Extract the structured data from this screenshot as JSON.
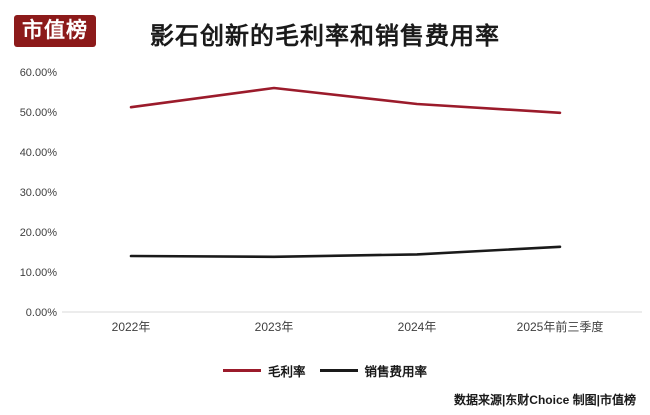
{
  "logo": {
    "text": "市值榜",
    "bg_color": "#8C1A1A",
    "text_color": "#FFFFFF"
  },
  "title": "影石创新的毛利率和销售费用率",
  "legend": [
    {
      "label": "毛利率",
      "color": "#9B1B2B"
    },
    {
      "label": "销售费用率",
      "color": "#1A1A1A"
    }
  ],
  "credit": "数据来源|东财Choice 制图|市值榜",
  "chart_data": {
    "type": "line",
    "title": "影石创新的毛利率和销售费用率",
    "categories": [
      "2022年",
      "2023年",
      "2024年",
      "2025年前三季度"
    ],
    "series": [
      {
        "name": "毛利率",
        "color": "#9B1B2B",
        "values": [
          51.2,
          56.0,
          52.0,
          49.8
        ]
      },
      {
        "name": "销售费用率",
        "color": "#1A1A1A",
        "values": [
          14.0,
          13.8,
          14.4,
          16.3
        ]
      }
    ],
    "ylim": [
      0,
      60
    ],
    "ytick_step": 10,
    "yticks": [
      "0.00%",
      "10.00%",
      "20.00%",
      "30.00%",
      "40.00%",
      "50.00%",
      "60.00%"
    ],
    "grid": false,
    "legend_position": "bottom",
    "axis_color": "#D9D9D9",
    "tick_label_color": "#404040"
  }
}
